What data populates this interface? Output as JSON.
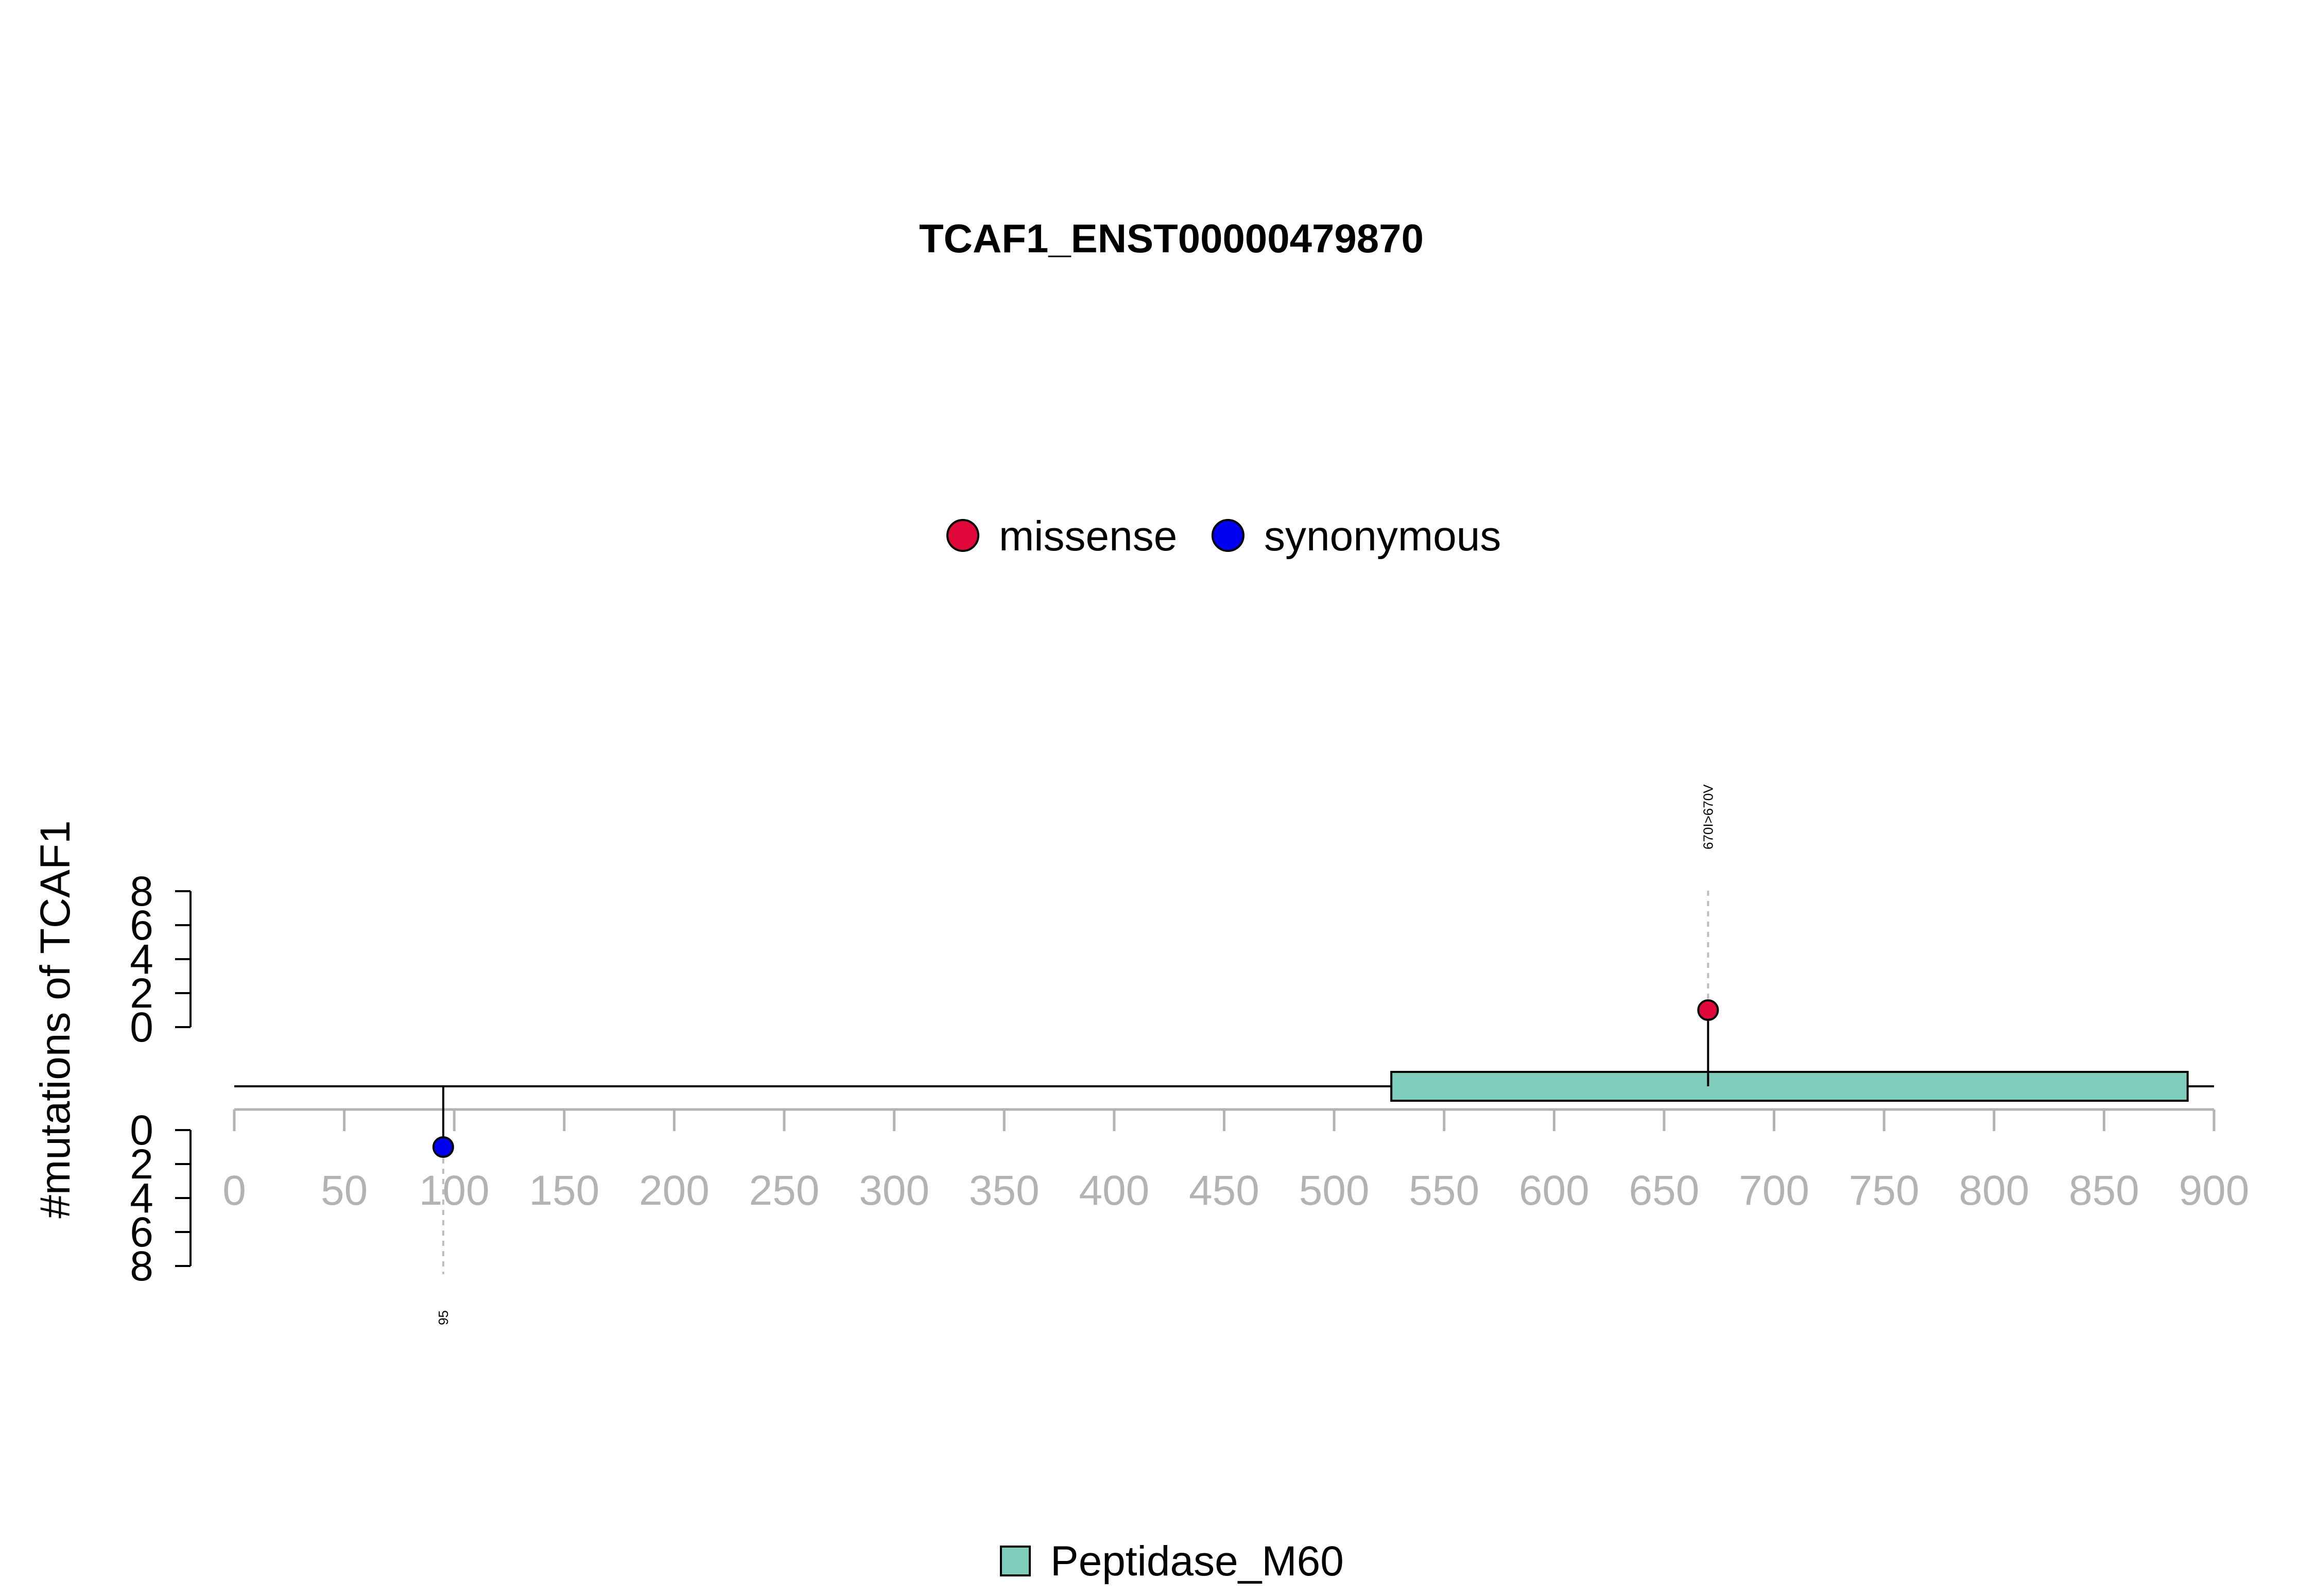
{
  "chart_data": {
    "type": "lollipop",
    "title": "TCAF1_ENST00000479870",
    "ylabel": "#mutations of TCAF1",
    "protein_length": 900,
    "x_axis": {
      "min": 0,
      "max": 900,
      "ticks": [
        0,
        50,
        100,
        150,
        200,
        250,
        300,
        350,
        400,
        450,
        500,
        550,
        600,
        650,
        700,
        750,
        800,
        850,
        900
      ],
      "color": "#b3b3b3"
    },
    "y_axis_top": {
      "min": 0,
      "max": 8,
      "ticks": [
        0,
        2,
        4,
        6,
        8
      ]
    },
    "y_axis_bottom": {
      "min": 0,
      "max": 8,
      "ticks": [
        0,
        2,
        4,
        6,
        8
      ]
    },
    "mutation_legend": [
      {
        "name": "missense",
        "color": "#e0073a"
      },
      {
        "name": "synonymous",
        "color": "#0000ee"
      }
    ],
    "mutations": [
      {
        "position": 670,
        "count": 1,
        "type": "missense",
        "side": "top",
        "label": "670I>670V"
      },
      {
        "position": 95,
        "count": 1,
        "type": "synonymous",
        "side": "bottom",
        "label": "95"
      }
    ],
    "domains": [
      {
        "name": "Peptidase_M60",
        "start": 526,
        "end": 888,
        "color": "#7fcdbb"
      }
    ]
  }
}
